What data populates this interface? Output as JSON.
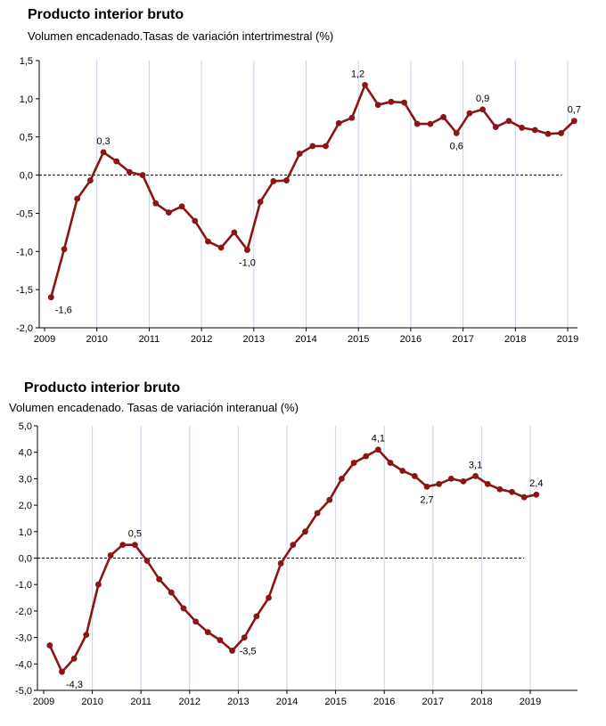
{
  "chart_data": [
    {
      "type": "line",
      "title": "Producto interior bruto",
      "subtitle": "Volumen encadenado.Tasas de variación intertrimestral (%)",
      "xlabel": "",
      "ylabel": "",
      "ylim": [
        -2.0,
        1.5
      ],
      "y_ticks": [
        "1,5",
        "1,0",
        "0,5",
        "0,0",
        "-0,5",
        "-1,0",
        "-1,5",
        "-2,0"
      ],
      "x_ticks": [
        "2009",
        "2010",
        "2011",
        "2012",
        "2013",
        "2014",
        "2015",
        "2016",
        "2017",
        "2018",
        "2019"
      ],
      "grid": "vertical at year starts",
      "zero_line": "dashed",
      "color": "#8b1414",
      "series": [
        {
          "quarters": [
            "2009-Q1",
            "2009-Q2",
            "2009-Q3",
            "2009-Q4",
            "2010-Q1",
            "2010-Q2",
            "2010-Q3",
            "2010-Q4",
            "2011-Q1",
            "2011-Q2",
            "2011-Q3",
            "2011-Q4",
            "2012-Q1",
            "2012-Q2",
            "2012-Q3",
            "2012-Q4",
            "2013-Q1",
            "2013-Q2",
            "2013-Q3",
            "2013-Q4",
            "2014-Q1",
            "2014-Q2",
            "2014-Q3",
            "2014-Q4",
            "2015-Q1",
            "2015-Q2",
            "2015-Q3",
            "2015-Q4",
            "2016-Q1",
            "2016-Q2",
            "2016-Q3",
            "2016-Q4",
            "2017-Q1",
            "2017-Q2",
            "2017-Q3",
            "2017-Q4",
            "2018-Q1",
            "2018-Q2",
            "2018-Q3",
            "2018-Q4",
            "2019-Q1"
          ],
          "values": [
            -1.6,
            -0.97,
            -0.31,
            -0.07,
            0.3,
            0.18,
            0.04,
            0.0,
            -0.37,
            -0.49,
            -0.41,
            -0.6,
            -0.87,
            -0.95,
            -0.75,
            -0.98,
            -0.35,
            -0.08,
            -0.07,
            0.28,
            0.38,
            0.38,
            0.68,
            0.75,
            1.18,
            0.92,
            0.96,
            0.95,
            0.67,
            0.67,
            0.76,
            0.55,
            0.81,
            0.86,
            0.63,
            0.71,
            0.62,
            0.59,
            0.54,
            0.55,
            0.71
          ]
        }
      ],
      "annotations": [
        {
          "index": 0,
          "text": "-1,6",
          "pos": "below-right"
        },
        {
          "index": 4,
          "text": "0,3",
          "pos": "above"
        },
        {
          "index": 15,
          "text": "-1,0",
          "pos": "below"
        },
        {
          "index": 24,
          "text": "1,2",
          "pos": "above-left"
        },
        {
          "index": 31,
          "text": "0,6",
          "pos": "below"
        },
        {
          "index": 33,
          "text": "0,9",
          "pos": "above"
        },
        {
          "index": 40,
          "text": "0,7",
          "pos": "above"
        }
      ]
    },
    {
      "type": "line",
      "title": "Producto interior bruto",
      "subtitle": "Volumen encadenado. Tasas de variación interanual (%)",
      "xlabel": "",
      "ylabel": "",
      "ylim": [
        -5.0,
        5.0
      ],
      "y_ticks": [
        "5,0",
        "4,0",
        "3,0",
        "2,0",
        "1,0",
        "0,0",
        "-1,0",
        "-2,0",
        "-3,0",
        "-4,0",
        "-5,0"
      ],
      "x_ticks": [
        "2009",
        "2010",
        "2011",
        "2012",
        "2013",
        "2014",
        "2015",
        "2016",
        "2017",
        "2018",
        "2019"
      ],
      "grid": "vertical at year starts",
      "zero_line": "dashed",
      "color": "#8b1414",
      "series": [
        {
          "quarters": [
            "2009-Q1",
            "2009-Q2",
            "2009-Q3",
            "2009-Q4",
            "2010-Q1",
            "2010-Q2",
            "2010-Q3",
            "2010-Q4",
            "2011-Q1",
            "2011-Q2",
            "2011-Q3",
            "2011-Q4",
            "2012-Q1",
            "2012-Q2",
            "2012-Q3",
            "2012-Q4",
            "2013-Q1",
            "2013-Q2",
            "2013-Q3",
            "2013-Q4",
            "2014-Q1",
            "2014-Q2",
            "2014-Q3",
            "2014-Q4",
            "2015-Q1",
            "2015-Q2",
            "2015-Q3",
            "2015-Q4",
            "2016-Q1",
            "2016-Q2",
            "2016-Q3",
            "2016-Q4",
            "2017-Q1",
            "2017-Q2",
            "2017-Q3",
            "2017-Q4",
            "2018-Q1",
            "2018-Q2",
            "2018-Q3",
            "2018-Q4",
            "2019-Q1"
          ],
          "values": [
            -3.3,
            -4.3,
            -3.8,
            -2.9,
            -1.0,
            0.1,
            0.5,
            0.5,
            -0.1,
            -0.8,
            -1.3,
            -1.9,
            -2.4,
            -2.8,
            -3.1,
            -3.5,
            -3.0,
            -2.2,
            -1.5,
            -0.2,
            0.5,
            1.0,
            1.7,
            2.2,
            3.0,
            3.6,
            3.85,
            4.1,
            3.6,
            3.3,
            3.1,
            2.7,
            2.8,
            3.0,
            2.9,
            3.1,
            2.8,
            2.6,
            2.5,
            2.3,
            2.4
          ]
        }
      ],
      "annotations": [
        {
          "index": 1,
          "text": "-4,3",
          "pos": "below-right"
        },
        {
          "index": 7,
          "text": "0,5",
          "pos": "above"
        },
        {
          "index": 15,
          "text": "-3,5",
          "pos": "right"
        },
        {
          "index": 27,
          "text": "4,1",
          "pos": "above"
        },
        {
          "index": 31,
          "text": "2,7",
          "pos": "below"
        },
        {
          "index": 35,
          "text": "3,1",
          "pos": "above"
        },
        {
          "index": 40,
          "text": "2,4",
          "pos": "above"
        }
      ]
    }
  ]
}
